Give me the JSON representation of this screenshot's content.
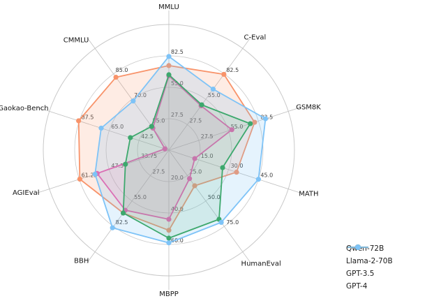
{
  "chart_data": {
    "type": "radar",
    "categories": [
      "MMLU",
      "C-Eval",
      "GSM8K",
      "MATH",
      "HumanEval",
      "MBPP",
      "BBH",
      "AGIEval",
      "Gaokao-Bench",
      "CMMLU"
    ],
    "axes": [
      {
        "name": "MMLU",
        "min": 0,
        "max": 110,
        "tick_labels": [
          "27.5",
          "55.0",
          "82.5"
        ]
      },
      {
        "name": "C-Eval",
        "min": 0,
        "max": 110,
        "tick_labels": [
          "27.5",
          "55.0",
          "82.5"
        ]
      },
      {
        "name": "GSM8K",
        "min": 0,
        "max": 110,
        "tick_labels": [
          "27.5",
          "55.0",
          "82.5"
        ]
      },
      {
        "name": "MATH",
        "min": 0,
        "max": 60,
        "tick_labels": [
          "15.0",
          "30.0",
          "45.0"
        ]
      },
      {
        "name": "HumanEval",
        "min": 0,
        "max": 100,
        "tick_labels": [
          "25.0",
          "50.0",
          "75.0"
        ]
      },
      {
        "name": "MBPP",
        "min": 0,
        "max": 80,
        "tick_labels": [
          "20.0",
          "40.0",
          "60.0"
        ]
      },
      {
        "name": "BBH",
        "min": 0,
        "max": 110,
        "tick_labels": [
          "27.5",
          "55.0",
          "82.5"
        ]
      },
      {
        "name": "AGIEval",
        "min": 20,
        "max": 75,
        "tick_labels": [
          "33.75",
          "47.5",
          "61.25"
        ]
      },
      {
        "name": "Gaokao-Bench",
        "min": 20,
        "max": 110,
        "tick_labels": [
          "42.5",
          "65.0",
          "87.5"
        ]
      },
      {
        "name": "CMMLU",
        "min": 40,
        "max": 100,
        "tick_labels": [
          "55.0",
          "70.0",
          "85.0"
        ]
      }
    ],
    "series": [
      {
        "name": "Qwen-72B",
        "color": "#F8936A",
        "fill_opacity": 0.18,
        "values": [
          74,
          82,
          79,
          34,
          35,
          51,
          68,
          61,
          88,
          83
        ]
      },
      {
        "name": "Llama-2-70B",
        "color": "#F35BA5",
        "fill_opacity": 0.13,
        "values": [
          65,
          48,
          58,
          13,
          28,
          44,
          65,
          53,
          23,
          53
        ]
      },
      {
        "name": "GPT-3.5",
        "color": "#2DA24C",
        "fill_opacity": 0.12,
        "values": [
          66,
          49,
          75,
          27,
          68,
          56,
          68,
          40,
          49,
          54
        ]
      },
      {
        "name": "GPT-4",
        "color": "#7EC3F7",
        "fill_opacity": 0.2,
        "values": [
          82,
          66,
          89,
          45,
          71,
          59,
          84,
          54,
          71,
          69
        ]
      }
    ],
    "grid": true,
    "rings_fraction": [
      0.25,
      0.5,
      0.75,
      1.0
    ],
    "legend_position": "lower right"
  },
  "legend": {
    "items": [
      {
        "label": "Qwen-72B",
        "color": "#F8936A"
      },
      {
        "label": "Llama-2-70B",
        "color": "#F35BA5"
      },
      {
        "label": "GPT-3.5",
        "color": "#2DA24C"
      },
      {
        "label": "GPT-4",
        "color": "#7EC3F7"
      }
    ]
  },
  "styles": {
    "background": "#ffffff",
    "grid_color": "#c9c9c9",
    "spoke_color": "#bfbfbf",
    "tick_color": "#3a3a3a",
    "label_color": "#161616"
  }
}
